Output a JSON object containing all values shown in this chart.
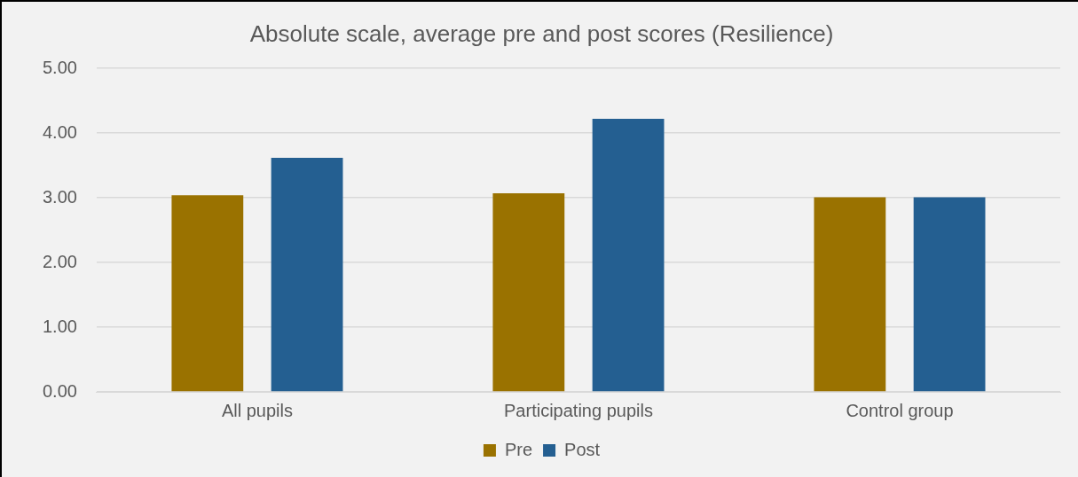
{
  "chart_data": {
    "type": "bar",
    "title": "Absolute scale, average pre and post scores (Resilience)",
    "categories": [
      "All pupils",
      "Participating pupils",
      "Control group"
    ],
    "series": [
      {
        "name": "Pre",
        "color": "#9a7200",
        "values": [
          3.04,
          3.07,
          3.01
        ]
      },
      {
        "name": "Post",
        "color": "#245f91",
        "values": [
          3.62,
          4.22,
          3.01
        ]
      }
    ],
    "ylim": [
      0,
      5
    ],
    "yticks": [
      {
        "value": 0,
        "label": "0.00"
      },
      {
        "value": 1,
        "label": "1.00"
      },
      {
        "value": 2,
        "label": "2.00"
      },
      {
        "value": 3,
        "label": "3.00"
      },
      {
        "value": 4,
        "label": "4.00"
      },
      {
        "value": 5,
        "label": "5.00"
      }
    ],
    "grid": "y",
    "legend": "bottom"
  }
}
